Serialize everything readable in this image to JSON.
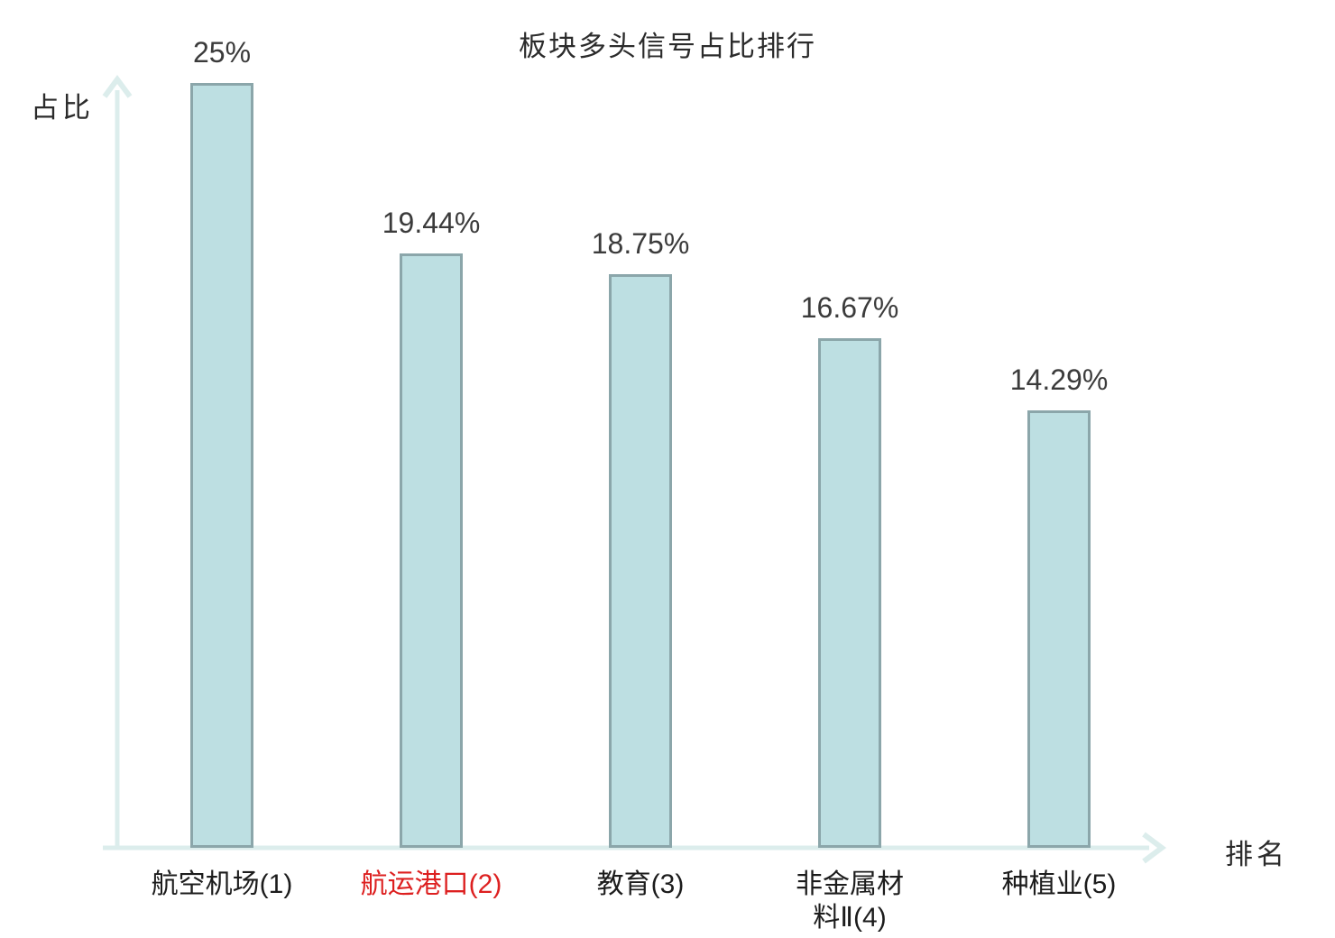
{
  "title": "板块多头信号占比排行",
  "y_axis_label": "占比",
  "x_axis_label": "排名",
  "colors": {
    "bar_fill": "#bddfe2",
    "bar_border": "#8ba6aa",
    "axis": "#dcedec",
    "value_text": "#3b3b3b",
    "category_text": "#1c1c1c",
    "highlight_text": "#dd2020"
  },
  "chart_data": {
    "type": "bar",
    "title": "板块多头信号占比排行",
    "xlabel": "排名",
    "ylabel": "占比",
    "grid": false,
    "legend": null,
    "ylim": [
      0,
      25
    ],
    "categories": [
      "航空机场(1)",
      "航运港口(2)",
      "教育(3)",
      "非金属材料Ⅱ(4)",
      "种植业(5)"
    ],
    "category_display": [
      "航空机场(1)",
      "航运港口(2)",
      "教育(3)",
      "非金属材\n料Ⅱ(4)",
      "种植业(5)"
    ],
    "values": [
      25,
      19.44,
      18.75,
      16.67,
      14.29
    ],
    "value_labels": [
      "25%",
      "19.44%",
      "18.75%",
      "16.67%",
      "14.29%"
    ],
    "highlighted_index": 1
  }
}
